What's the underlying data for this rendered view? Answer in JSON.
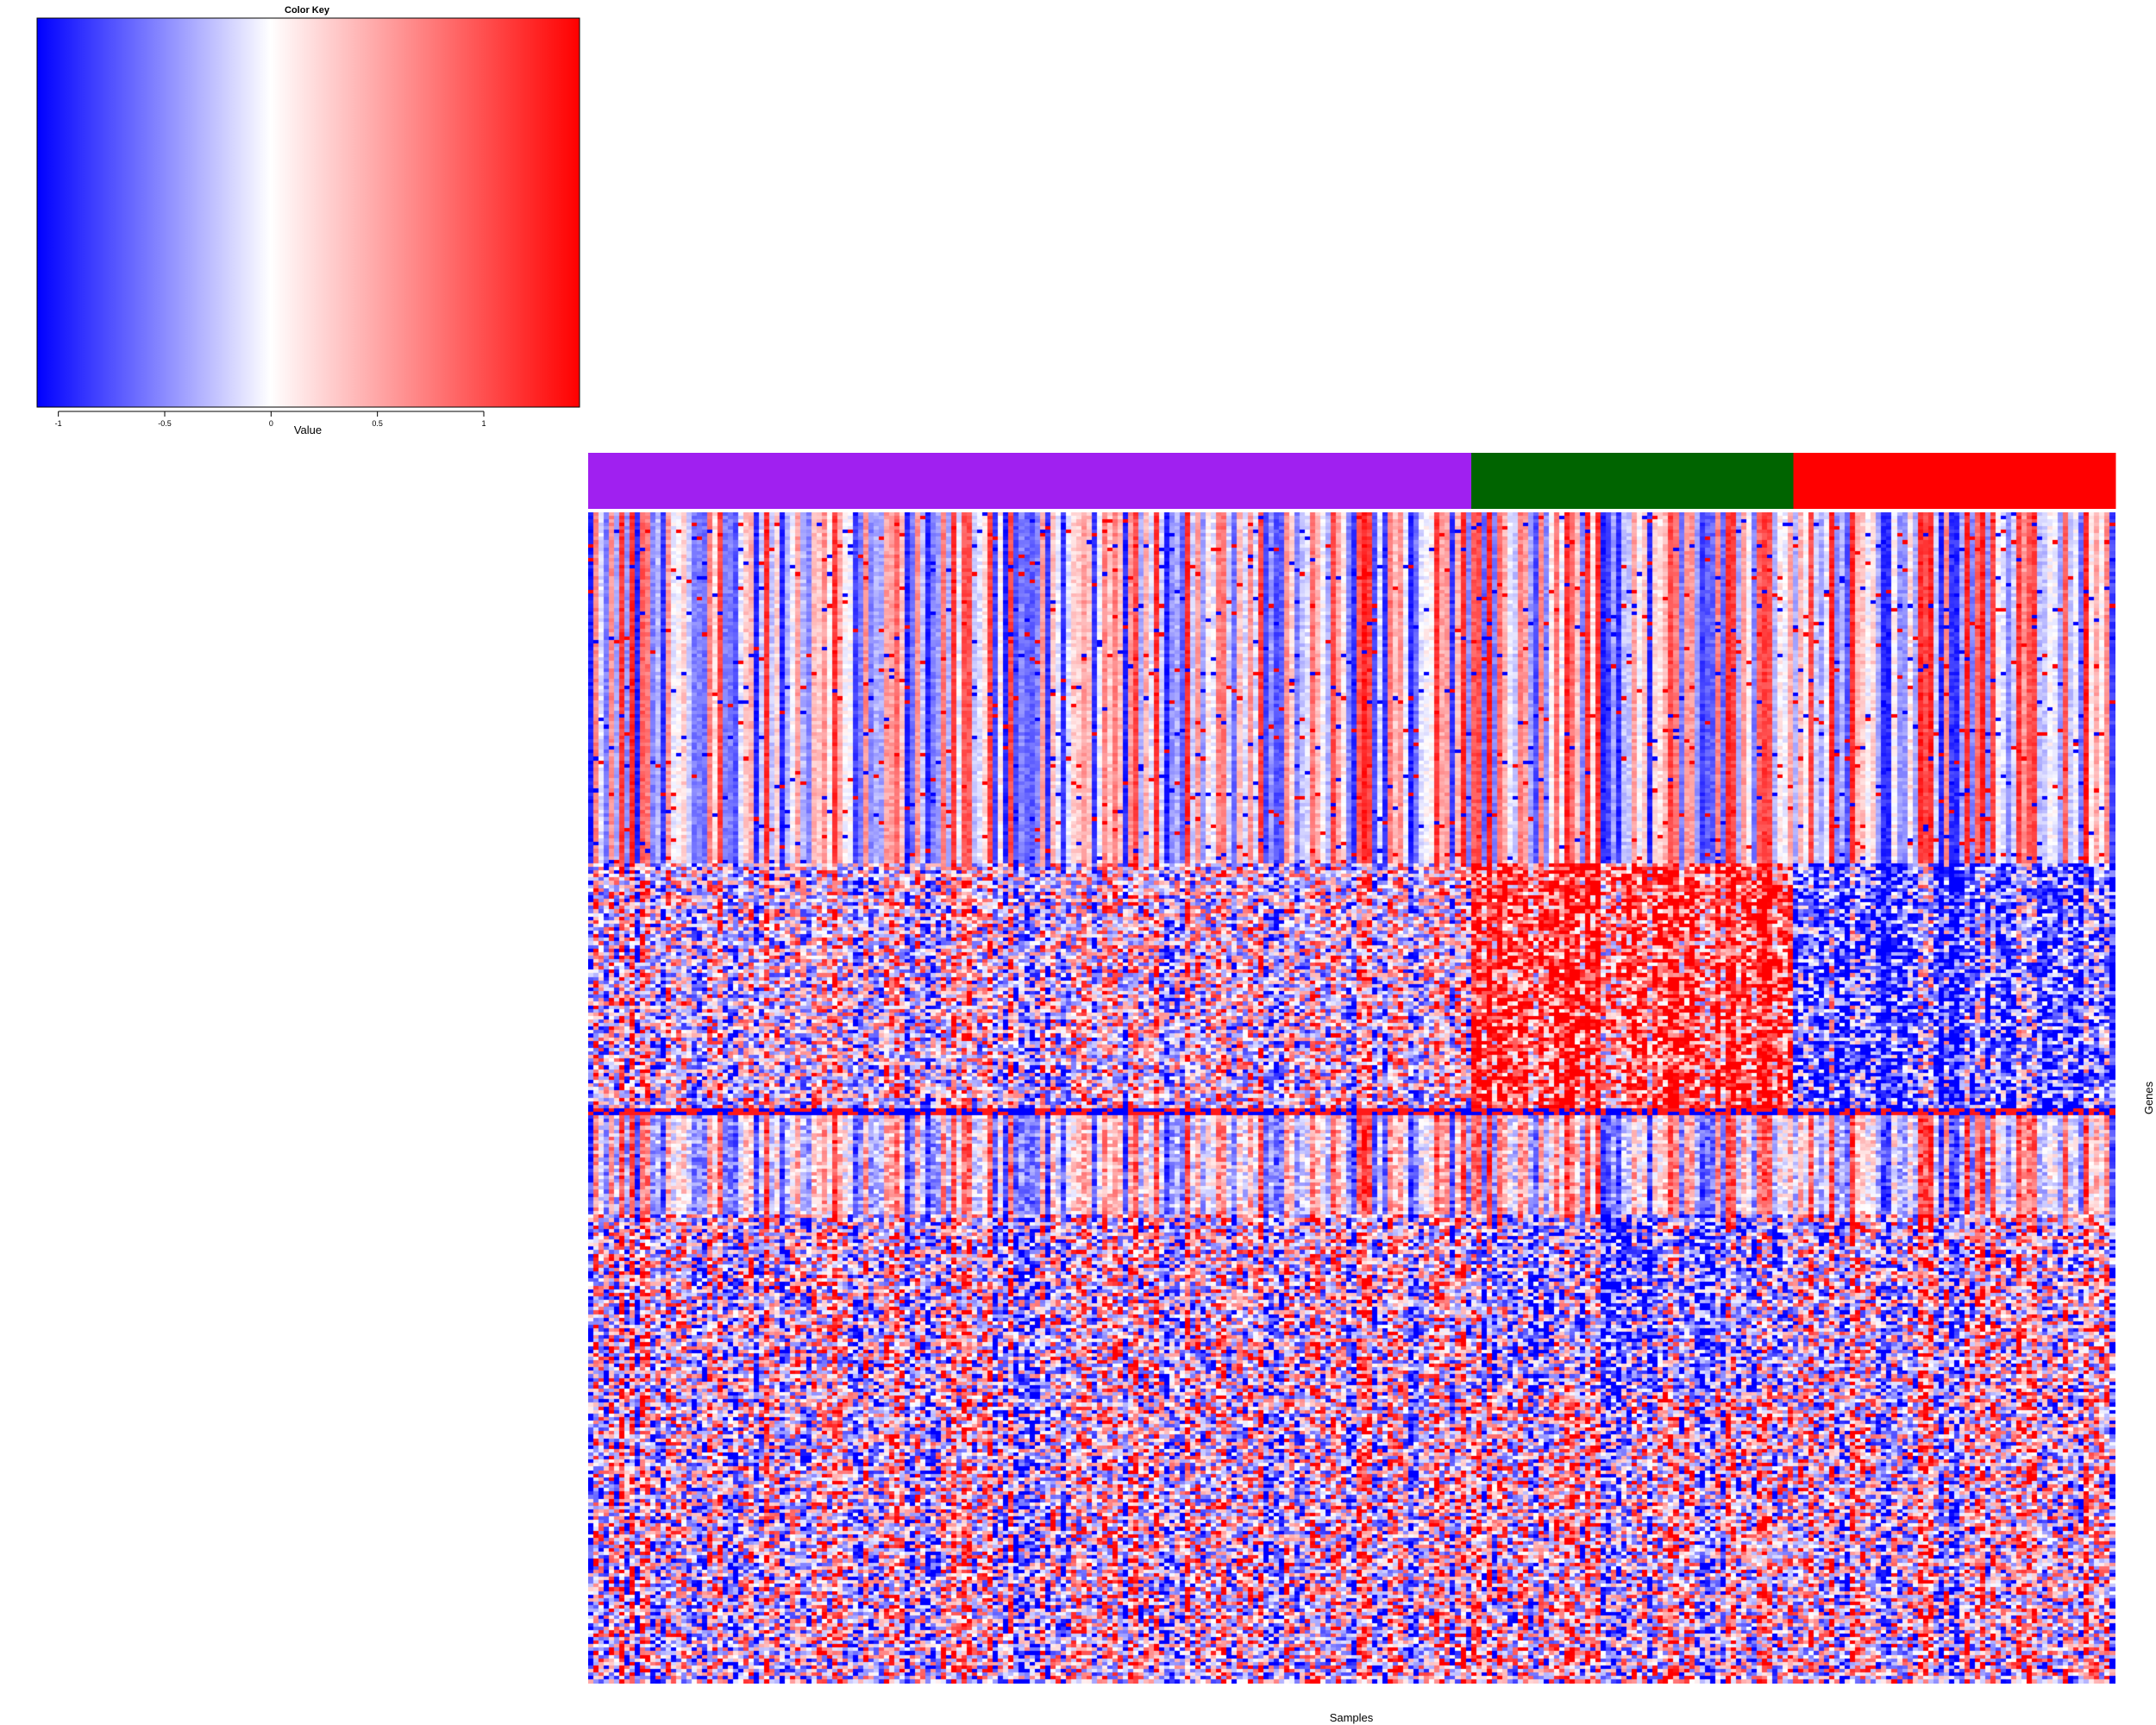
{
  "chart_data": {
    "type": "heatmap",
    "color_key": {
      "title": "Color Key",
      "xlabel": "Value",
      "tick_labels": [
        "-1",
        "-0.5",
        "0",
        "0.5",
        "1"
      ],
      "tick_values": [
        -1,
        -0.5,
        0,
        0.5,
        1
      ],
      "range": [
        -1.1,
        1.45
      ],
      "color_low": "#0000ff",
      "color_mid": "#ffffff",
      "color_high": "#ff0000"
    },
    "xlabel": "Samples",
    "ylabel": "Genes",
    "sample_groups": [
      {
        "color": "#a020f0",
        "n_samples": 170
      },
      {
        "color": "#006400",
        "n_samples": 62
      },
      {
        "color": "#ff0000",
        "n_samples": 62
      }
    ],
    "n_genes": 330,
    "dendrogram": false
  }
}
